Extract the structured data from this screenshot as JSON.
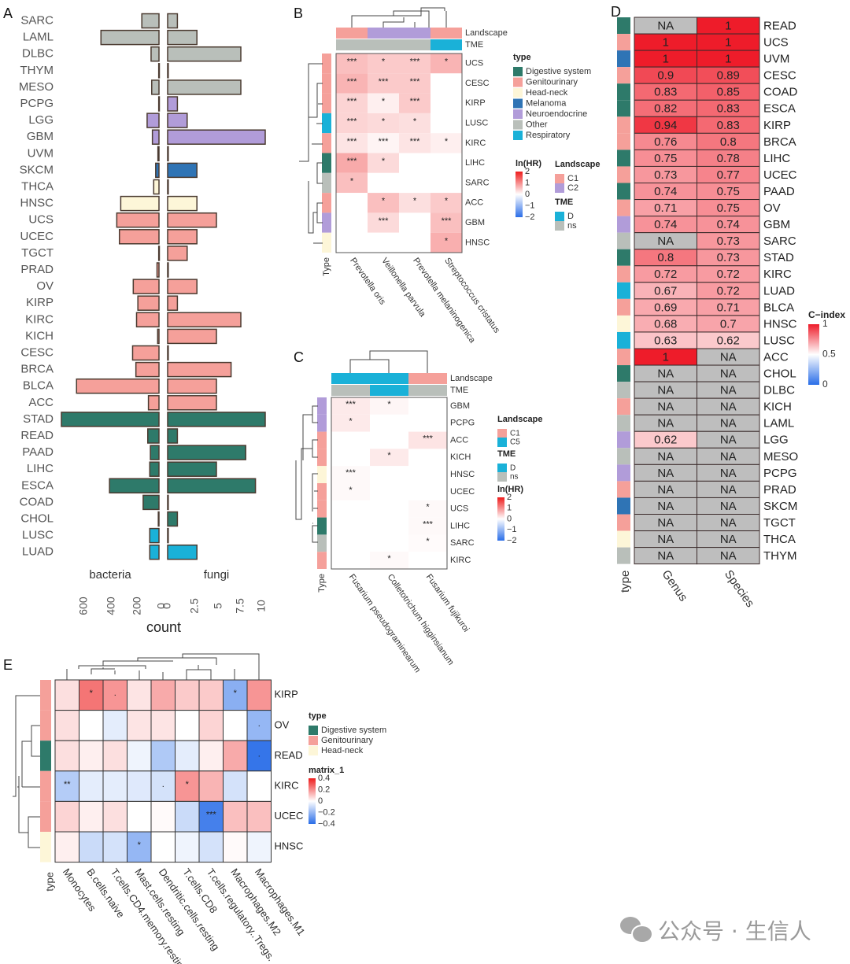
{
  "watermark": {
    "icon": "wechat-icon",
    "text": "公众号 · 生信人"
  },
  "colors": {
    "type": {
      "Digestive system": "#2e7a6a",
      "Genitourinary": "#f5a09a",
      "Head-neck": "#fdf6d8",
      "Melanoma": "#2f74b5",
      "Neuroendocrine": "#b19cd9",
      "Other": "#b9bfba",
      "Respiratory": "#1ab1d8"
    },
    "landscape": {
      "C1": "#f5a09a",
      "C2": "#b19cd9",
      "C5": "#1ab1d8"
    },
    "tme": {
      "D": "#1ab1d8",
      "ns": "#b9bfba"
    },
    "na": "#bebebe"
  },
  "chart_data": [
    {
      "panel": "A",
      "type": "bar",
      "orientation": "horizontal-mirrored",
      "xlabel": "count",
      "facets": [
        "bacteria",
        "fungi"
      ],
      "bacteria_ticks": [
        "600",
        "400",
        "200",
        "0"
      ],
      "fungi_ticks": [
        "0",
        "2.5",
        "5",
        "7.5",
        "10"
      ],
      "bacteria_xlim": [
        0,
        740
      ],
      "fungi_xlim": [
        0,
        10
      ],
      "categories": [
        "SARC",
        "LAML",
        "DLBC",
        "THYM",
        "MESO",
        "PCPG",
        "LGG",
        "GBM",
        "UVM",
        "SKCM",
        "THCA",
        "HNSC",
        "UCS",
        "UCEC",
        "TGCT",
        "PRAD",
        "OV",
        "KIRP",
        "KIRC",
        "KICH",
        "CESC",
        "BRCA",
        "BLCA",
        "ACC",
        "STAD",
        "READ",
        "PAAD",
        "LIHC",
        "ESCA",
        "COAD",
        "CHOL",
        "LUSC",
        "LUAD"
      ],
      "types": [
        "Other",
        "Other",
        "Other",
        "Other",
        "Other",
        "Neuroendocrine",
        "Neuroendocrine",
        "Neuroendocrine",
        "Melanoma",
        "Melanoma",
        "Head-neck",
        "Head-neck",
        "Genitourinary",
        "Genitourinary",
        "Genitourinary",
        "Genitourinary",
        "Genitourinary",
        "Genitourinary",
        "Genitourinary",
        "Genitourinary",
        "Genitourinary",
        "Genitourinary",
        "Genitourinary",
        "Genitourinary",
        "Digestive system",
        "Digestive system",
        "Digestive system",
        "Digestive system",
        "Digestive system",
        "Digestive system",
        "Digestive system",
        "Respiratory",
        "Respiratory"
      ],
      "series": [
        {
          "name": "bacteria",
          "values": [
            130,
            440,
            60,
            2,
            55,
            2,
            90,
            50,
            8,
            25,
            40,
            290,
            320,
            300,
            2,
            15,
            195,
            160,
            170,
            10,
            200,
            175,
            625,
            80,
            740,
            85,
            65,
            70,
            375,
            120,
            5,
            70,
            70
          ]
        },
        {
          "name": "fungi",
          "values": [
            1,
            3,
            7.5,
            0,
            7.5,
            1,
            2,
            10,
            0,
            3,
            0,
            3,
            5,
            3,
            2,
            0,
            3,
            1,
            7.5,
            5,
            0,
            6.5,
            5,
            5,
            10,
            1,
            8,
            5,
            9,
            0,
            1,
            0,
            3
          ]
        }
      ]
    },
    {
      "panel": "B",
      "type": "heatmap",
      "legend_title": "ln(HR)",
      "color_range": [
        -2,
        2
      ],
      "legend_ticks": [
        "2",
        "1",
        "0",
        "−1",
        "−2"
      ],
      "row_annotation_label": "Type",
      "col_annotations": [
        "Landscape",
        "TME"
      ],
      "columns": [
        "Prevotella oris",
        "Veillonella parvula",
        "Prevotella melaninogenica",
        "Streptococcus cristatus"
      ],
      "col_landscape": [
        "C1",
        "C2",
        "C2",
        "C1"
      ],
      "col_tme": [
        "ns",
        "ns",
        "ns",
        "D"
      ],
      "rows": [
        "UCS",
        "CESC",
        "KIRP",
        "LUSC",
        "KIRC",
        "LIHC",
        "SARC",
        "ACC",
        "GBM",
        "HNSC"
      ],
      "row_types": [
        "Genitourinary",
        "Genitourinary",
        "Genitourinary",
        "Respiratory",
        "Genitourinary",
        "Digestive system",
        "Other",
        "Genitourinary",
        "Neuroendocrine",
        "Head-neck"
      ],
      "values": [
        [
          0.6,
          0.5,
          0.5,
          0.7
        ],
        [
          0.7,
          0.5,
          0.5,
          null
        ],
        [
          0.4,
          0.15,
          0.5,
          null
        ],
        [
          0.4,
          0.35,
          0.3,
          null
        ],
        [
          0.25,
          0.1,
          0.25,
          0.15
        ],
        [
          0.8,
          0.35,
          null,
          null
        ],
        [
          0.6,
          null,
          null,
          null
        ],
        [
          null,
          0.6,
          0.3,
          0.5
        ],
        [
          null,
          0.35,
          null,
          0.6
        ],
        [
          null,
          null,
          null,
          0.75
        ]
      ],
      "stars": [
        [
          "***",
          "*",
          "***",
          "*"
        ],
        [
          "***",
          "***",
          "***",
          ""
        ],
        [
          "***",
          "*",
          "***",
          ""
        ],
        [
          "***",
          "*",
          "*",
          ""
        ],
        [
          "***",
          "***",
          "***",
          "*"
        ],
        [
          "***",
          "*",
          "",
          ""
        ],
        [
          "*",
          "",
          "",
          ""
        ],
        [
          "",
          "*",
          "*",
          "*"
        ],
        [
          "",
          "***",
          "",
          "***"
        ],
        [
          "",
          "",
          "",
          "*"
        ]
      ],
      "type_legend_title": "type",
      "type_legend": [
        "Digestive system",
        "Genitourinary",
        "Head-neck",
        "Melanoma",
        "Neuroendocrine",
        "Other",
        "Respiratory"
      ],
      "landscape_legend_title": "Landscape",
      "landscape_legend": [
        "C1",
        "C2"
      ],
      "tme_legend_title": "TME",
      "tme_legend": [
        "D",
        "ns"
      ]
    },
    {
      "panel": "C",
      "type": "heatmap",
      "legend_title": "ln(HR)",
      "color_range": [
        -2,
        2
      ],
      "legend_ticks": [
        "2",
        "1",
        "0",
        "−1",
        "−2"
      ],
      "row_annotation_label": "Type",
      "col_annotations": [
        "Landscape",
        "TME"
      ],
      "columns": [
        "Fusarium pseudograminearum",
        "Colletotrichum higginsianum",
        "Fusarium fujikuroi"
      ],
      "col_landscape": [
        "C5",
        "C5",
        "C1"
      ],
      "col_tme": [
        "ns",
        "D",
        "ns"
      ],
      "rows": [
        "GBM",
        "PCPG",
        "ACC",
        "KICH",
        "HNSC",
        "UCEC",
        "UCS",
        "LIHC",
        "SARC",
        "KIRC"
      ],
      "row_types": [
        "Neuroendocrine",
        "Neuroendocrine",
        "Genitourinary",
        "Genitourinary",
        "Head-neck",
        "Genitourinary",
        "Genitourinary",
        "Digestive system",
        "Other",
        "Genitourinary"
      ],
      "values": [
        [
          0.2,
          0.08,
          null
        ],
        [
          0.2,
          null,
          null
        ],
        [
          null,
          null,
          0.25
        ],
        [
          null,
          0.2,
          null
        ],
        [
          0.06,
          null,
          null
        ],
        [
          0.06,
          null,
          null
        ],
        [
          null,
          null,
          0.06
        ],
        [
          null,
          null,
          0.06
        ],
        [
          null,
          null,
          0.04
        ],
        [
          null,
          0.06,
          null
        ]
      ],
      "stars": [
        [
          "***",
          "*",
          ""
        ],
        [
          "*",
          "",
          ""
        ],
        [
          "",
          "",
          "***"
        ],
        [
          "",
          "*",
          ""
        ],
        [
          "***",
          "",
          ""
        ],
        [
          "*",
          "",
          ""
        ],
        [
          "",
          "",
          "*"
        ],
        [
          "",
          "",
          "***"
        ],
        [
          "",
          "",
          "*"
        ],
        [
          "",
          "*",
          ""
        ]
      ],
      "landscape_legend_title": "Landscape",
      "landscape_legend": [
        "C1",
        "C5"
      ],
      "tme_legend_title": "TME",
      "tme_legend": [
        "D",
        "ns"
      ]
    },
    {
      "panel": "D",
      "type": "heatmap",
      "legend_title": "C−index",
      "color_range": [
        0,
        1
      ],
      "legend_ticks": [
        "1",
        "0.5",
        "0"
      ],
      "row_annotation_label": "type",
      "columns": [
        "Genus",
        "Species"
      ],
      "rows": [
        "READ",
        "UCS",
        "UVM",
        "CESC",
        "COAD",
        "ESCA",
        "KIRP",
        "BRCA",
        "LIHC",
        "UCEC",
        "PAAD",
        "OV",
        "GBM",
        "SARC",
        "STAD",
        "KIRC",
        "LUAD",
        "BLCA",
        "HNSC",
        "LUSC",
        "ACC",
        "CHOL",
        "DLBC",
        "KICH",
        "LAML",
        "LGG",
        "MESO",
        "PCPG",
        "PRAD",
        "SKCM",
        "TGCT",
        "THCA",
        "THYM"
      ],
      "row_types": [
        "Digestive system",
        "Genitourinary",
        "Melanoma",
        "Genitourinary",
        "Digestive system",
        "Digestive system",
        "Genitourinary",
        "Genitourinary",
        "Digestive system",
        "Genitourinary",
        "Digestive system",
        "Genitourinary",
        "Neuroendocrine",
        "Other",
        "Digestive system",
        "Genitourinary",
        "Respiratory",
        "Genitourinary",
        "Head-neck",
        "Respiratory",
        "Genitourinary",
        "Digestive system",
        "Other",
        "Genitourinary",
        "Other",
        "Neuroendocrine",
        "Other",
        "Neuroendocrine",
        "Genitourinary",
        "Melanoma",
        "Genitourinary",
        "Head-neck",
        "Other"
      ],
      "values": [
        [
          null,
          1
        ],
        [
          1,
          1
        ],
        [
          1,
          1
        ],
        [
          0.9,
          0.89
        ],
        [
          0.83,
          0.85
        ],
        [
          0.82,
          0.83
        ],
        [
          0.94,
          0.83
        ],
        [
          0.76,
          0.8
        ],
        [
          0.75,
          0.78
        ],
        [
          0.73,
          0.77
        ],
        [
          0.74,
          0.75
        ],
        [
          0.71,
          0.75
        ],
        [
          0.74,
          0.74
        ],
        [
          null,
          0.73
        ],
        [
          0.8,
          0.73
        ],
        [
          0.72,
          0.72
        ],
        [
          0.67,
          0.72
        ],
        [
          0.69,
          0.71
        ],
        [
          0.68,
          0.7
        ],
        [
          0.63,
          0.62
        ],
        [
          1,
          null
        ],
        [
          null,
          null
        ],
        [
          null,
          null
        ],
        [
          null,
          null
        ],
        [
          null,
          null
        ],
        [
          0.62,
          null
        ],
        [
          null,
          null
        ],
        [
          null,
          null
        ],
        [
          null,
          null
        ],
        [
          null,
          null
        ],
        [
          null,
          null
        ],
        [
          null,
          null
        ],
        [
          null,
          null
        ]
      ],
      "na_label": "NA"
    },
    {
      "panel": "E",
      "type": "heatmap",
      "legend_title": "matrix_1",
      "color_range": [
        -0.4,
        0.4
      ],
      "legend_ticks": [
        "0.4",
        "0.2",
        "0",
        "−0.2",
        "−0.4"
      ],
      "row_annotation_label": "type",
      "columns": [
        "Monocytes",
        "B.cells.naive",
        "T.cells.CD4.memory.resting",
        "Mast.cells.resting",
        "Dendritic.cells.resting",
        "T.cells.CD8",
        "T.cells.regulatory..Tregs.",
        "Macrophages.M2",
        "Macrophages.M1"
      ],
      "rows": [
        "KIRP",
        "OV",
        "READ",
        "KIRC",
        "UCEC",
        "HNSC"
      ],
      "row_types": [
        "Genitourinary",
        "Genitourinary",
        "Digestive system",
        "Genitourinary",
        "Genitourinary",
        "Head-neck"
      ],
      "values": [
        [
          0.06,
          0.26,
          0.2,
          0.05,
          0.16,
          0.1,
          0.1,
          -0.22,
          0.2
        ],
        [
          0.06,
          0.0,
          -0.05,
          0.05,
          0.05,
          0.0,
          0.08,
          0.0,
          -0.2
        ],
        [
          0.06,
          0.03,
          0.06,
          -0.03,
          -0.15,
          -0.05,
          0.03,
          0.16,
          -0.38
        ],
        [
          -0.14,
          -0.05,
          -0.05,
          -0.06,
          -0.08,
          0.2,
          0.14,
          -0.08,
          0.0
        ],
        [
          0.08,
          0.03,
          0.06,
          0.0,
          0.01,
          -0.1,
          -0.35,
          0.12,
          0.12
        ],
        [
          0.03,
          -0.1,
          -0.08,
          -0.2,
          0.0,
          -0.03,
          -0.08,
          0.01,
          -0.03
        ]
      ],
      "stars": [
        [
          "",
          "*",
          ".",
          "",
          "",
          "",
          "",
          "*",
          ""
        ],
        [
          "",
          "",
          "",
          "",
          "",
          "",
          "",
          "",
          "."
        ],
        [
          "",
          "",
          "",
          "",
          "",
          "",
          "",
          "",
          "."
        ],
        [
          "**",
          "",
          "",
          "",
          ".",
          "*",
          "",
          "",
          ""
        ],
        [
          "",
          "",
          "",
          "",
          "",
          "",
          "***",
          "",
          ""
        ],
        [
          "",
          "",
          "",
          "*",
          "",
          "",
          "",
          "",
          ""
        ]
      ],
      "type_legend_title": "type",
      "type_legend": [
        "Digestive system",
        "Genitourinary",
        "Head-neck"
      ]
    }
  ],
  "panel_labels": [
    "A",
    "B",
    "C",
    "D",
    "E"
  ]
}
